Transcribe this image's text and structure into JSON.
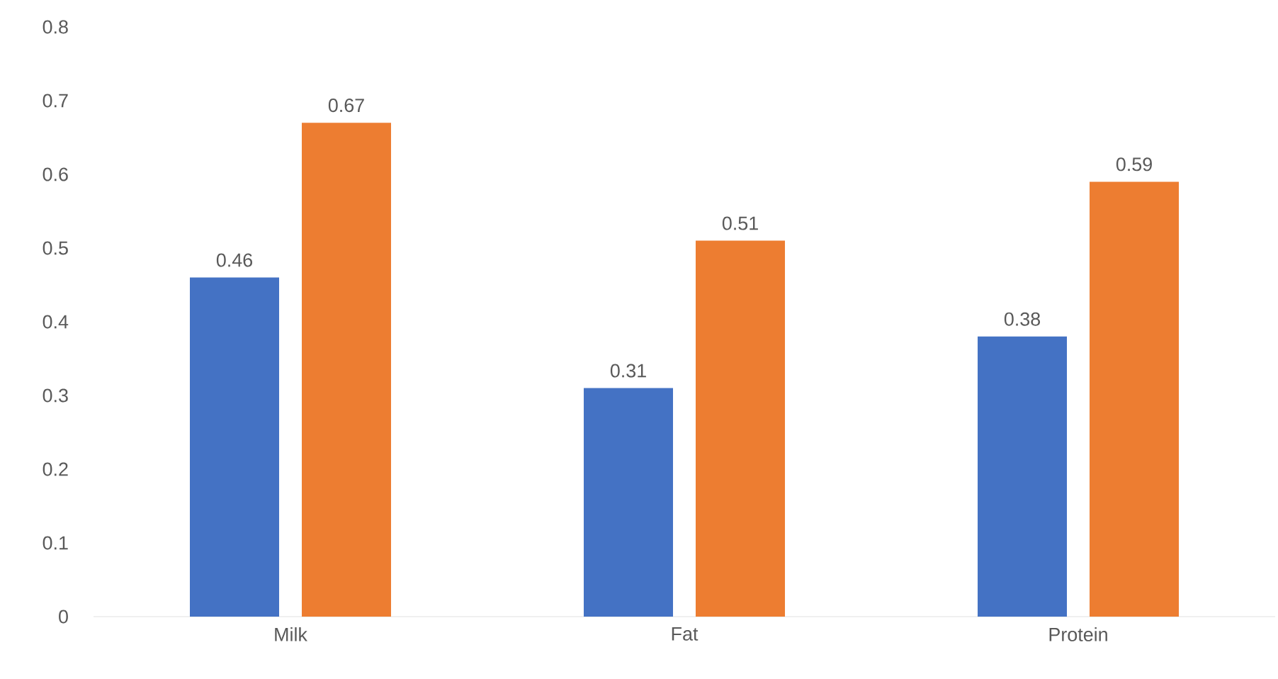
{
  "chart_data": {
    "type": "bar",
    "categories": [
      "Milk",
      "Fat",
      "Protein"
    ],
    "series": [
      {
        "color": "#4472c4",
        "values": [
          0.46,
          0.31,
          0.38
        ]
      },
      {
        "color": "#ed7d31",
        "values": [
          0.67,
          0.51,
          0.59
        ]
      }
    ],
    "ylim": [
      0,
      0.8
    ],
    "yticks": [
      0,
      0.1,
      0.2,
      0.3,
      0.4,
      0.5,
      0.6,
      0.7,
      0.8
    ],
    "data_labels": true,
    "grid": false
  }
}
